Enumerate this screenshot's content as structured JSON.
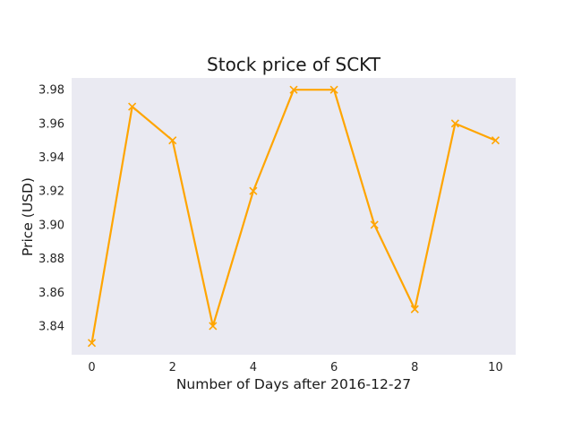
{
  "chart_data": {
    "type": "line",
    "title": "Stock price of SCKT",
    "xlabel": "Number of Days after 2016-12-27",
    "ylabel": "Price (USD)",
    "x": [
      0,
      1,
      2,
      3,
      4,
      5,
      6,
      7,
      8,
      9,
      10
    ],
    "series": [
      {
        "values": [
          3.83,
          3.97,
          3.95,
          3.84,
          3.92,
          3.98,
          3.98,
          3.9,
          3.85,
          3.96,
          3.95
        ],
        "color": "#ffa500",
        "marker": "x"
      }
    ],
    "xlim": [
      -0.5,
      10.5
    ],
    "ylim": [
      3.823,
      3.987
    ],
    "xticks": [
      0,
      2,
      4,
      6,
      8,
      10
    ],
    "yticks": [
      3.84,
      3.86,
      3.88,
      3.9,
      3.92,
      3.94,
      3.96,
      3.98
    ],
    "ytick_labels": [
      "3.84",
      "3.86",
      "3.88",
      "3.90",
      "3.92",
      "3.94",
      "3.96",
      "3.98"
    ],
    "grid": false,
    "plot_background": "#eaeaf2"
  }
}
